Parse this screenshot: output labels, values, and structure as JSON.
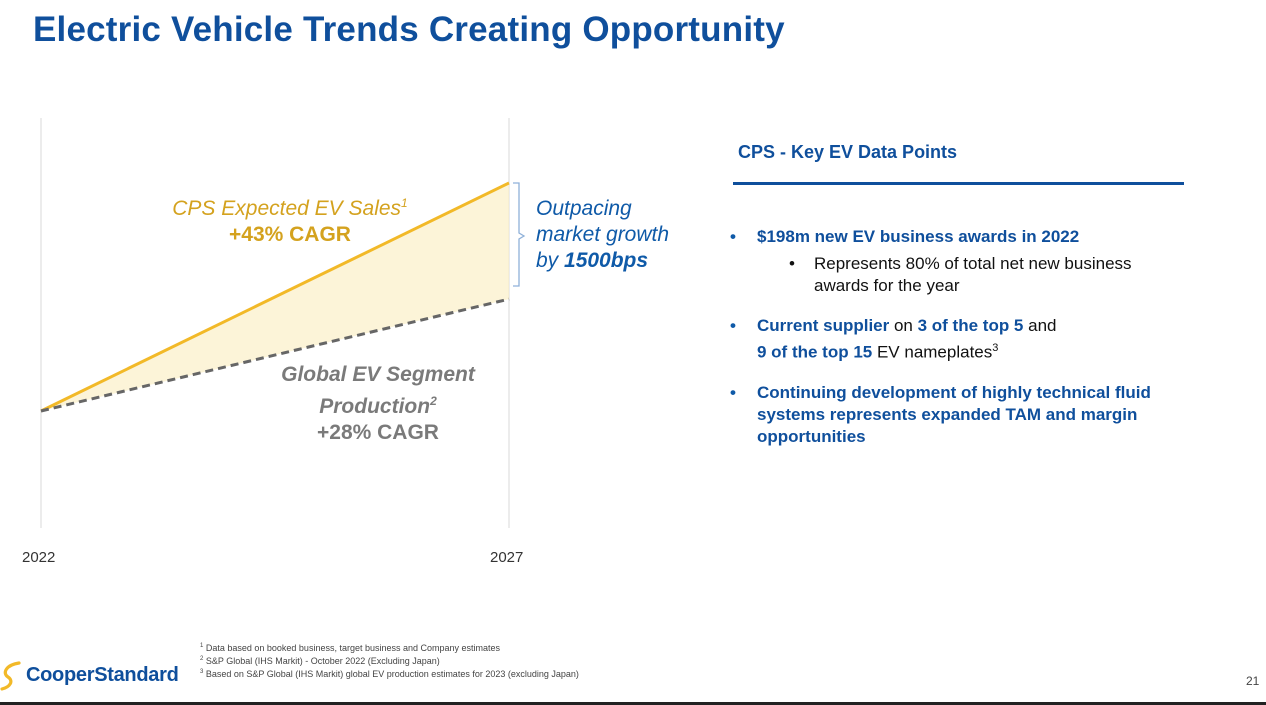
{
  "slide": {
    "title": "Electric Vehicle Trends Creating Opportunity",
    "page_number": "21"
  },
  "chart_data": {
    "type": "line",
    "x": [
      "2022",
      "2027"
    ],
    "series": [
      {
        "name": "CPS Expected EV Sales",
        "cagr": "+43% CAGR",
        "values": [
          1,
          5.97
        ],
        "color": "#f2b928"
      },
      {
        "name": "Global EV Segment Production",
        "cagr": "+28% CAGR",
        "values": [
          1,
          3.44
        ],
        "color": "#666666"
      }
    ],
    "annotation": {
      "line1": "Outpacing",
      "line2": "market growth",
      "line3_prefix": "by ",
      "line3_bold": "1500bps"
    }
  },
  "panel": {
    "title": "CPS - Key EV Data Points",
    "b1_bold": "$198m new EV business awards in 2022",
    "b1_sub": "Represents 80% of total net new business awards for the year",
    "b2_bold_a": "Current supplier",
    "b2_text_a": " on ",
    "b2_bold_b": "3 of the top 5",
    "b2_text_b": " and",
    "b2_bold_c": "9 of the top 15",
    "b2_text_c": " EV nameplates",
    "b2_sup": "3",
    "b3_bold": "Continuing development of highly technical fluid systems represents expanded TAM and margin opportunities"
  },
  "footnotes": {
    "n1": "Data based on booked business, target business and Company estimates",
    "n2": "S&P Global (IHS Markit) - October 2022 (Excluding Japan)",
    "n3": "Based on S&P Global (IHS Markit) global EV production estimates for 2023 (excluding Japan)"
  },
  "logo": {
    "text": "CooperStandard",
    "colors": {
      "brand": "#0f4f9c",
      "swoosh": "#f2b928"
    }
  }
}
